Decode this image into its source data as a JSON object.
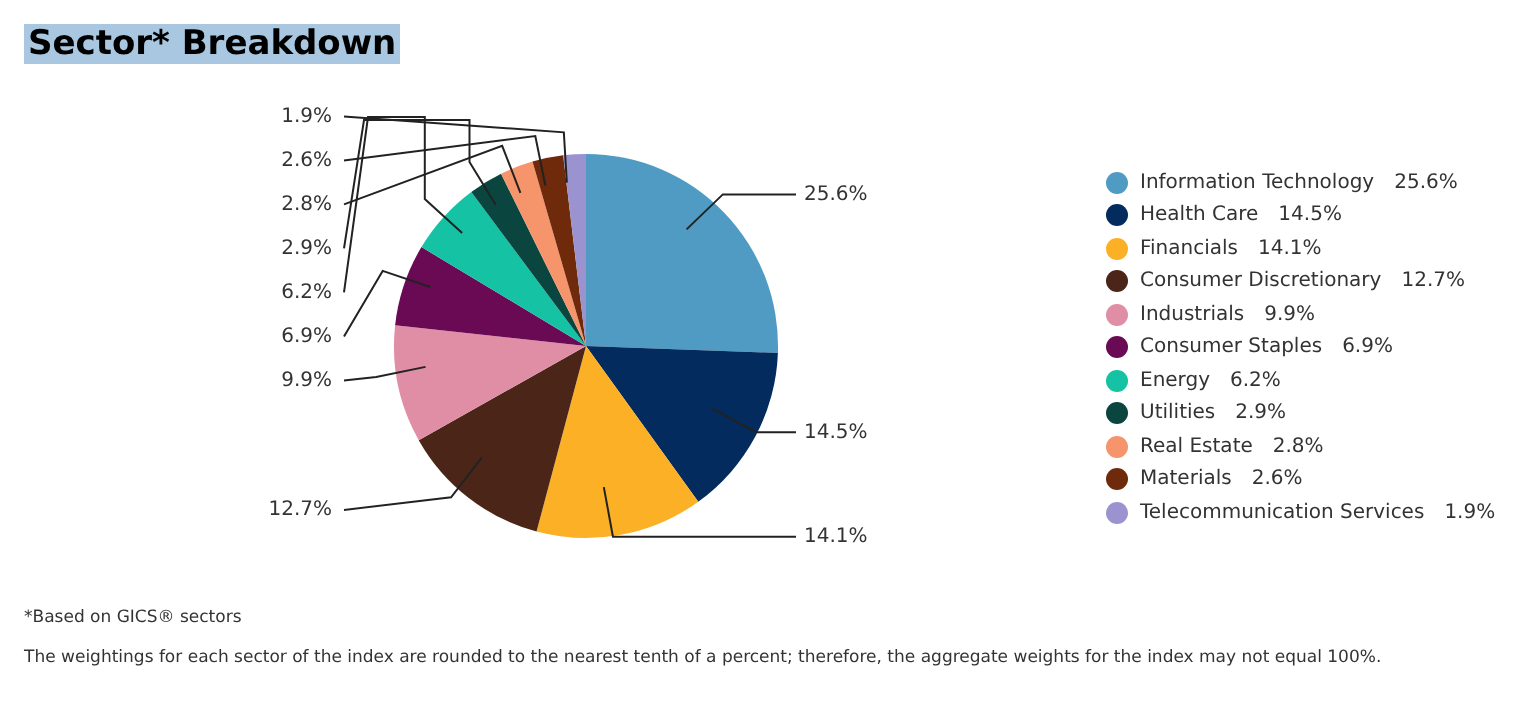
{
  "chart_data": {
    "type": "pie",
    "title": "Sector* Breakdown",
    "categories": [
      "Information Technology",
      "Health Care",
      "Financials",
      "Consumer Discretionary",
      "Industrials",
      "Consumer Staples",
      "Energy",
      "Utilities",
      "Real Estate",
      "Materials",
      "Telecommunication Services"
    ],
    "values": [
      25.6,
      14.5,
      14.1,
      12.7,
      9.9,
      6.9,
      6.2,
      2.9,
      2.8,
      2.6,
      1.9
    ],
    "value_labels": [
      "25.6%",
      "14.5%",
      "14.1%",
      "12.7%",
      "9.9%",
      "6.9%",
      "6.2%",
      "2.9%",
      "2.8%",
      "2.6%",
      "1.9%"
    ],
    "colors": [
      "#4f9bc4",
      "#032b5e",
      "#fbb025",
      "#4b2618",
      "#e08ea6",
      "#6a0a55",
      "#15c2a4",
      "#0b4540",
      "#f6946b",
      "#6f2a0c",
      "#9a93cf"
    ],
    "legend": "right",
    "annotations": [
      "*Based on GICS® sectors",
      "The weightings for each sector of the index are rounded to the nearest tenth of a percent; therefore, the aggregate weights for the index may not equal 100%."
    ]
  }
}
